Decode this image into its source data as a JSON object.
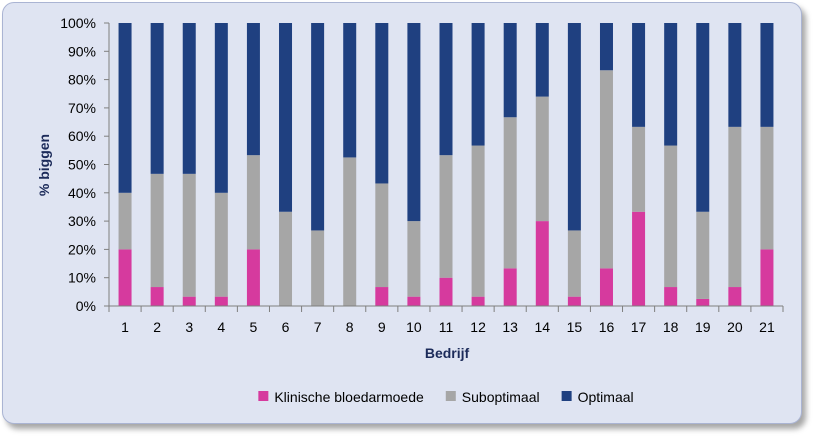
{
  "chart_data": {
    "type": "bar",
    "stacked": true,
    "xlabel": "Bedrijf",
    "ylabel": "% biggen",
    "ylim": [
      0,
      100
    ],
    "y_ticks": [
      "0%",
      "10%",
      "20%",
      "30%",
      "40%",
      "50%",
      "60%",
      "70%",
      "80%",
      "90%",
      "100%"
    ],
    "categories": [
      "1",
      "2",
      "3",
      "4",
      "5",
      "6",
      "7",
      "8",
      "9",
      "10",
      "11",
      "12",
      "13",
      "14",
      "15",
      "16",
      "17",
      "18",
      "19",
      "20",
      "21"
    ],
    "series": [
      {
        "name": "Klinische bloedarmoede",
        "color": "#d63a9e",
        "values": [
          20,
          6.7,
          3.3,
          3.3,
          20,
          0,
          0,
          0,
          6.7,
          3.3,
          10,
          3.3,
          13.3,
          30,
          3.3,
          13.3,
          33.3,
          6.7,
          2.5,
          6.7,
          20
        ]
      },
      {
        "name": "Suboptimaal",
        "color": "#a6a6a6",
        "values": [
          20,
          40,
          43.4,
          36.7,
          33.3,
          33.3,
          26.7,
          52.5,
          36.6,
          26.7,
          43.3,
          53.4,
          53.4,
          44,
          23.4,
          70,
          30,
          50,
          30.8,
          56.6,
          43.3
        ]
      },
      {
        "name": "Optimaal",
        "color": "#1f4080",
        "values": [
          60,
          53.3,
          53.3,
          60,
          46.7,
          66.7,
          73.3,
          47.5,
          56.7,
          70,
          46.7,
          43.3,
          33.3,
          26,
          73.3,
          16.7,
          36.7,
          43.3,
          66.7,
          36.7,
          36.7
        ]
      }
    ],
    "legend_position": "bottom",
    "grid": false
  }
}
